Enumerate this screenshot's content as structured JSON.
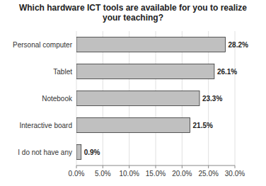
{
  "chart_data": {
    "type": "bar",
    "orientation": "horizontal",
    "title": "Which hardware ICT tools are available for you to realize\nyour teaching?",
    "categories": [
      "I do not have any",
      "Interactive board",
      "Notebook",
      "Tablet",
      "Personal computer"
    ],
    "values": [
      0.9,
      21.5,
      23.3,
      26.1,
      28.2
    ],
    "value_labels": [
      "0.9%",
      "21.5%",
      "23.3%",
      "26.1%",
      "28.2%"
    ],
    "data_labels": true,
    "color": "#c0c0c0",
    "xlim": [
      0,
      30
    ],
    "xticks": [
      {
        "value": 0,
        "label": "0.0%"
      },
      {
        "value": 5,
        "label": "5.0%"
      },
      {
        "value": 10,
        "label": "10.0%"
      },
      {
        "value": 15,
        "label": "15.0%"
      },
      {
        "value": 20,
        "label": "20.0%"
      },
      {
        "value": 25,
        "label": "25.0%"
      },
      {
        "value": 30,
        "label": "30.0%"
      }
    ],
    "grid": true
  }
}
